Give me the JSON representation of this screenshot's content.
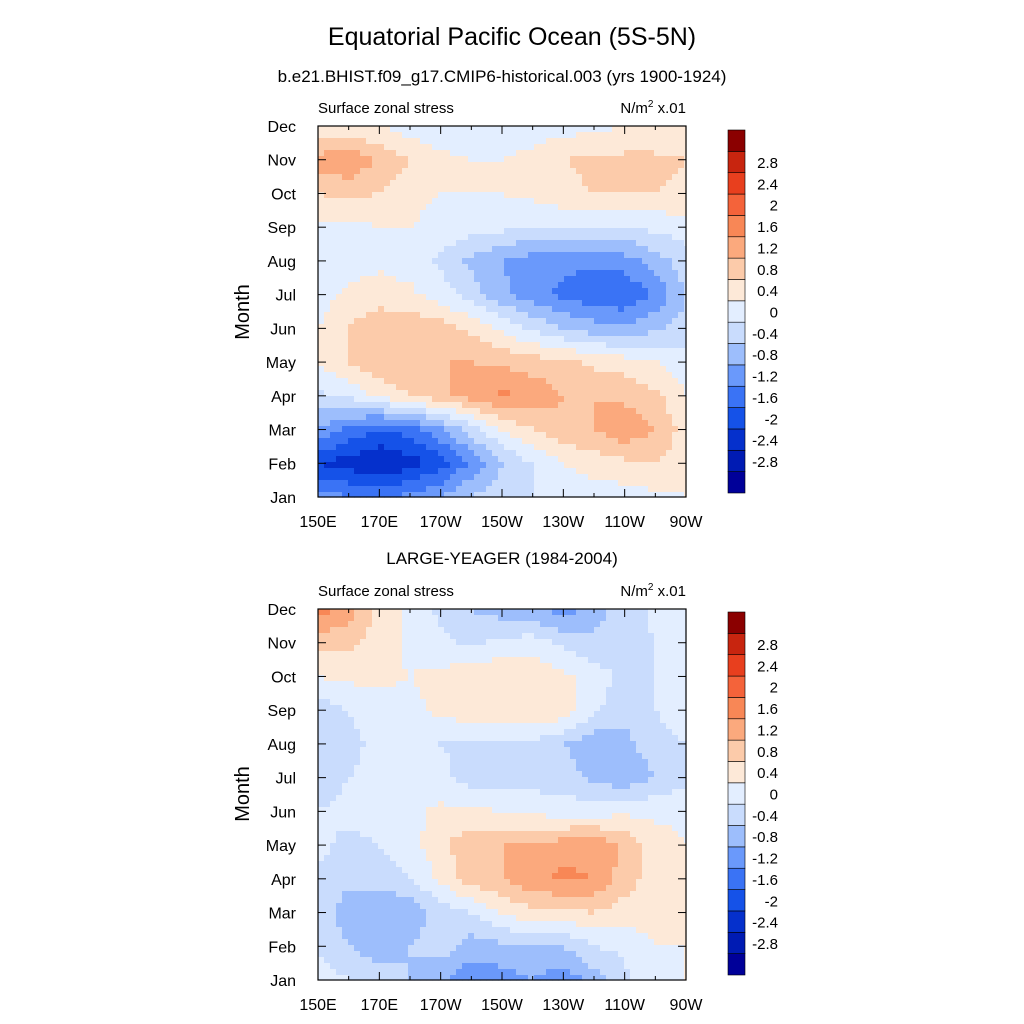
{
  "figure": {
    "title": "Equatorial Pacific Ocean (5S-5N)"
  },
  "colorbar": {
    "colors": [
      "#000099",
      "#001bb3",
      "#0530cc",
      "#1552e8",
      "#3a73f5",
      "#6a99fb",
      "#9dbefc",
      "#c9dcfd",
      "#e3eeff",
      "#fde9d8",
      "#fccbaa",
      "#fba97d",
      "#f88756",
      "#f4633a",
      "#e83f1e",
      "#c8250f",
      "#8b0000"
    ],
    "labels": [
      "-2.8",
      "-2.4",
      "-2",
      "-1.6",
      "-1.2",
      "-0.8",
      "-0.4",
      "0",
      "0.4",
      "0.8",
      "1.2",
      "1.6",
      "2",
      "2.4",
      "2.8"
    ]
  },
  "chart_data": [
    {
      "type": "heatmap",
      "title": "b.e21.BHIST.f09_g17.CMIP6-historical.003 (yrs 1900-1924)",
      "left_label": "Surface zonal stress",
      "units_text": "N/m",
      "units_sup": "2",
      "units_scale": " x.01",
      "xlabel": "",
      "ylabel": "Month",
      "xlim": [
        150,
        270
      ],
      "xticks": [
        "150E",
        "170E",
        "170W",
        "150W",
        "130W",
        "110W",
        "90W"
      ],
      "yticks": [
        "Jan",
        "Feb",
        "Mar",
        "Apr",
        "May",
        "Jun",
        "Jul",
        "Aug",
        "Sep",
        "Oct",
        "Nov",
        "Dec"
      ],
      "x": [
        150,
        160,
        170,
        180,
        190,
        200,
        210,
        220,
        230,
        240,
        250,
        260,
        270
      ],
      "values": [
        [
          -1.2,
          -1.4,
          -1.5,
          -1.3,
          -1.0,
          -0.6,
          -0.3,
          -0.2,
          -0.1,
          0.0,
          0.0,
          0.1,
          0.2
        ],
        [
          -2.2,
          -2.4,
          -2.6,
          -2.4,
          -2.0,
          -1.3,
          -0.6,
          -0.2,
          0.2,
          0.4,
          0.5,
          0.6,
          0.4
        ],
        [
          -1.0,
          -1.5,
          -1.8,
          -1.6,
          -1.1,
          -0.4,
          0.2,
          0.6,
          0.9,
          1.0,
          1.3,
          1.0,
          0.4
        ],
        [
          -0.3,
          -0.1,
          0.3,
          0.6,
          0.9,
          1.2,
          1.5,
          1.3,
          1.0,
          1.0,
          0.9,
          0.7,
          0.2
        ],
        [
          0.2,
          0.6,
          0.9,
          1.0,
          1.0,
          1.0,
          0.9,
          0.8,
          0.7,
          0.5,
          0.4,
          0.2,
          0.0
        ],
        [
          0.2,
          0.6,
          0.9,
          0.9,
          0.8,
          0.5,
          0.1,
          -0.3,
          -0.6,
          -0.8,
          -0.9,
          -0.7,
          -0.4
        ],
        [
          0.0,
          0.3,
          0.4,
          0.3,
          0.0,
          -0.4,
          -0.9,
          -1.2,
          -1.5,
          -1.7,
          -1.8,
          -1.3,
          -0.6
        ],
        [
          -0.1,
          0.0,
          0.1,
          0.0,
          -0.3,
          -0.7,
          -1.0,
          -1.2,
          -1.3,
          -1.3,
          -1.2,
          -0.8,
          -0.4
        ],
        [
          0.1,
          0.1,
          0.2,
          0.2,
          0.1,
          0.0,
          -0.1,
          -0.2,
          -0.2,
          -0.2,
          -0.2,
          -0.1,
          0.0
        ],
        [
          0.6,
          0.7,
          0.6,
          0.3,
          0.2,
          0.2,
          0.2,
          0.3,
          0.5,
          0.6,
          0.6,
          0.6,
          0.5
        ],
        [
          1.2,
          1.4,
          0.9,
          0.6,
          0.3,
          0.2,
          0.2,
          0.3,
          0.6,
          0.7,
          0.7,
          0.7,
          0.6
        ],
        [
          0.1,
          0.2,
          0.2,
          0.0,
          -0.1,
          -0.1,
          0.0,
          0.0,
          0.0,
          0.1,
          0.2,
          0.2,
          0.2
        ]
      ]
    },
    {
      "type": "heatmap",
      "title": "LARGE-YEAGER (1984-2004)",
      "left_label": "Surface zonal stress",
      "units_text": "N/m",
      "units_sup": "2",
      "units_scale": " x.01",
      "xlabel": "",
      "ylabel": "Month",
      "xlim": [
        150,
        270
      ],
      "xticks": [
        "150E",
        "170E",
        "170W",
        "150W",
        "130W",
        "110W",
        "90W"
      ],
      "yticks": [
        "Jan",
        "Feb",
        "Mar",
        "Apr",
        "May",
        "Jun",
        "Jul",
        "Aug",
        "Sep",
        "Oct",
        "Nov",
        "Dec"
      ],
      "x": [
        150,
        160,
        170,
        180,
        190,
        200,
        210,
        220,
        230,
        240,
        250,
        260,
        270
      ],
      "values": [
        [
          0.1,
          -0.2,
          -0.4,
          -0.6,
          -0.9,
          -1.3,
          -1.2,
          -1.0,
          -1.3,
          -0.8,
          -0.3,
          0.1,
          0.2
        ],
        [
          -0.3,
          -0.6,
          -0.8,
          -0.6,
          -0.4,
          -0.8,
          -0.7,
          -0.6,
          -0.6,
          -0.2,
          -0.1,
          0.2,
          0.2
        ],
        [
          -0.4,
          -0.8,
          -1.0,
          -0.9,
          -0.4,
          -0.2,
          0.2,
          0.5,
          0.5,
          0.6,
          0.4,
          0.4,
          0.2
        ],
        [
          -0.3,
          -0.5,
          -0.4,
          -0.2,
          0.3,
          0.8,
          1.0,
          1.3,
          1.5,
          1.4,
          0.8,
          0.4,
          0.2
        ],
        [
          -0.1,
          -0.3,
          -0.2,
          0.0,
          0.5,
          0.9,
          1.0,
          1.1,
          1.2,
          1.3,
          0.9,
          0.4,
          0.2
        ],
        [
          -0.2,
          -0.1,
          0.0,
          0.1,
          0.3,
          0.3,
          0.2,
          0.1,
          0.0,
          0.0,
          0.1,
          0.1,
          0.1
        ],
        [
          -0.4,
          -0.2,
          -0.1,
          0.0,
          -0.1,
          -0.4,
          -0.5,
          -0.4,
          -0.4,
          -0.7,
          -0.9,
          -0.6,
          -0.3
        ],
        [
          -0.6,
          -0.3,
          -0.1,
          0.0,
          -0.2,
          -0.3,
          -0.2,
          -0.3,
          -0.6,
          -0.9,
          -0.7,
          -0.4,
          -0.2
        ],
        [
          -0.4,
          -0.2,
          0.0,
          0.1,
          0.3,
          0.5,
          0.5,
          0.6,
          0.5,
          -0.1,
          -0.5,
          -0.2,
          0.1
        ],
        [
          0.2,
          0.3,
          0.3,
          0.2,
          0.3,
          0.5,
          0.6,
          0.5,
          0.3,
          0.0,
          -0.3,
          -0.2,
          0.2
        ],
        [
          0.8,
          0.7,
          0.4,
          0.1,
          -0.1,
          -0.3,
          -0.1,
          0.0,
          -0.3,
          -0.5,
          -0.4,
          -0.2,
          0.1
        ],
        [
          1.6,
          1.2,
          0.5,
          0.1,
          -0.3,
          -0.6,
          -0.8,
          -0.9,
          -1.2,
          -0.8,
          -0.4,
          -0.1,
          0.0
        ]
      ]
    }
  ]
}
